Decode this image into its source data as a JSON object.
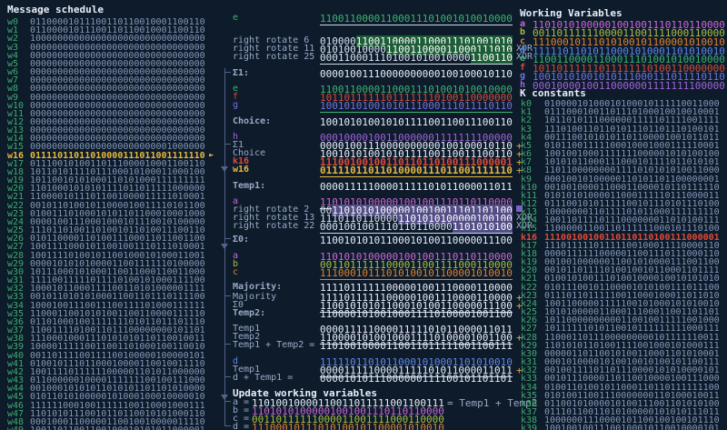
{
  "palette": {
    "background": "#0d1b2b",
    "binary_default": "#8598b8",
    "label_green": "#3eac6c",
    "var_a": "#cf66d4",
    "var_b": "#a9bf3e",
    "var_c": "#e0812f",
    "var_d": "#5f87e8",
    "var_e": "#3cb371",
    "var_f": "#d54c38",
    "var_g": "#7472dc",
    "var_h": "#a163d8",
    "k_highlight": "#e04a3a",
    "w_highlight": "#e9b83d",
    "plus": "#e8a23c",
    "rotate_highlight_green": "#1c5c36",
    "rotate_highlight_violet": "#534e86"
  },
  "icons": {
    "current_row_arrow": "►"
  },
  "message_schedule": {
    "title": "Message schedule",
    "rows": [
      {
        "label": "w0",
        "value": "01100001011100110110010001100110"
      },
      {
        "label": "w1",
        "value": "01100001011100110110010001100110"
      },
      {
        "label": "w2",
        "value": "10000000000000000000000000000000"
      },
      {
        "label": "w3",
        "value": "00000000000000000000000000000000"
      },
      {
        "label": "w4",
        "value": "00000000000000000000000000000000"
      },
      {
        "label": "w5",
        "value": "00000000000000000000000000000000"
      },
      {
        "label": "w6",
        "value": "00000000000000000000000000000000"
      },
      {
        "label": "w7",
        "value": "00000000000000000000000000000000"
      },
      {
        "label": "w8",
        "value": "00000000000000000000000000000000"
      },
      {
        "label": "w9",
        "value": "00000000000000000000000000000000"
      },
      {
        "label": "w10",
        "value": "00000000000000000000000000000000"
      },
      {
        "label": "w11",
        "value": "00000000000000000000000000000000"
      },
      {
        "label": "w12",
        "value": "00000000000000000000000000000000"
      },
      {
        "label": "w13",
        "value": "00000000000000000000000000000000"
      },
      {
        "label": "w14",
        "value": "00000000000000000000000000000000"
      },
      {
        "label": "w15",
        "value": "00000000000000000000000001000000"
      },
      {
        "label": "w16",
        "value": "01111011011010000111011001111110",
        "current": true
      },
      {
        "label": "w17",
        "value": "01110010100110111000010001100110"
      },
      {
        "label": "w18",
        "value": "10110101111011100010100011000100"
      },
      {
        "label": "w19",
        "value": "10110010101000110101000111111111"
      },
      {
        "label": "w20",
        "value": "11010001010101111011011111000000"
      },
      {
        "label": "w21",
        "value": "11000010111011001000011111010001"
      },
      {
        "label": "w22",
        "value": "00101101001011000010011110101100"
      },
      {
        "label": "w23",
        "value": "01001110100010101101100010001000"
      },
      {
        "label": "w24",
        "value": "00001001110001000101110010100000"
      },
      {
        "label": "w25",
        "value": "11101101001101001011010011100110"
      },
      {
        "label": "w26",
        "value": "01011000011010011100011011001100"
      },
      {
        "label": "w27",
        "value": "10011110001011001001110111010001"
      },
      {
        "label": "w28",
        "value": "10011110100101100100010100011001"
      },
      {
        "label": "w29",
        "value": "00001010101000011001111110100000"
      },
      {
        "label": "w30",
        "value": "10111000101000110011000110011000"
      },
      {
        "label": "w31",
        "value": "11110011111011110100101000111100"
      },
      {
        "label": "w32",
        "value": "10001011000111100110101000001111"
      },
      {
        "label": "w33",
        "value": "00101101010100011001101110111100"
      },
      {
        "label": "w34",
        "value": "10001001110011100111101000111111"
      },
      {
        "label": "w35",
        "value": "11000110010101001100110000111110"
      },
      {
        "label": "w36",
        "value": "01101000100111111101011011101110"
      },
      {
        "label": "w37",
        "value": "11001111010011011100000000101101"
      },
      {
        "label": "w38",
        "value": "11100010001110101010110110010011"
      },
      {
        "label": "w39",
        "value": "10000111110011001101000100110010"
      },
      {
        "label": "w40",
        "value": "00110111100111100100000100000101"
      },
      {
        "label": "w41",
        "value": "01001011101100010000110010011110"
      },
      {
        "label": "w42",
        "value": "10011110111111000001101011000000"
      },
      {
        "label": "w43",
        "value": "01100000010000111111100100111000"
      },
      {
        "label": "w44",
        "value": "00100010101011010101101101010000"
      },
      {
        "label": "w45",
        "value": "01011010100000101000100010000010"
      },
      {
        "label": "w46",
        "value": "11111100010011111100110001000111"
      },
      {
        "label": "w47",
        "value": "11010101110010110110010101000110"
      },
      {
        "label": "w48",
        "value": "00010001100000110010010000011110"
      },
      {
        "label": "w49",
        "value": "10011011001100100010101011000001"
      }
    ]
  },
  "mid": {
    "e_top": {
      "label": "e",
      "value": "11001100001100011101001010010000"
    },
    "rotations_e": [
      {
        "label": "right rotate 6",
        "value": "01000011001100001100011101001010",
        "xor": ""
      },
      {
        "label": "right rotate 11",
        "value": "01010010000110011000011000111010",
        "xor": "XOR"
      },
      {
        "label": "right rotate 25",
        "value": "00011000111010010100100001100110",
        "xor": "XOR"
      }
    ],
    "sigma1": {
      "label": "Σ1:",
      "value": "00001001110000000000100100010110"
    },
    "choice_inputs": [
      {
        "label": "e",
        "value": "11001100001100011101001010010000"
      },
      {
        "label": "f",
        "value": "10110111111011111110100110000000"
      },
      {
        "label": "g",
        "value": "10010101001010111000111011110110"
      }
    ],
    "choice": {
      "label": "Choice:",
      "value": "10010101001010111100110011100110"
    },
    "temp1_stack": [
      {
        "label": "h",
        "value": "00010000100110000001111111100000"
      },
      {
        "label": "Σ1",
        "value": "00001001110000000000100100010110",
        "plus": "+"
      },
      {
        "label": "Choice",
        "value": "10010101001010111100110011100110",
        "plus": "+"
      },
      {
        "label": "k16",
        "value": "11100100100110110110100111000001",
        "plus": "+"
      },
      {
        "label": "w16",
        "value": "01111011011010000111011001111110",
        "plus": "+"
      }
    ],
    "temp1": {
      "label": "Temp1:",
      "value": "00001111100001111101011000011011"
    },
    "a_top": {
      "label": "a",
      "value": "11010101000001001001110110110000"
    },
    "rotations_a": [
      {
        "label": "right rotate 2",
        "value": "00110101010000010010011101101100",
        "xor": ""
      },
      {
        "label": "right rotate 13",
        "value": "11101101100001101010100000100100",
        "xor": "XOR"
      },
      {
        "label": "right rotate 22",
        "value": "00010010011101101100001101010100",
        "xor": "XOR"
      }
    ],
    "sigma0": {
      "label": "Σ0:",
      "value": "11001010101100010100110000011100"
    },
    "majority_inputs": [
      {
        "label": "a",
        "value": "11010101000001001001110110110000"
      },
      {
        "label": "b",
        "value": "00110111111000011001111000110000"
      },
      {
        "label": "c",
        "value": "11100010111010100101100001010010"
      }
    ],
    "majority": {
      "label": "Majority:",
      "value": "11110111111000001001110000110000"
    },
    "temp2_stack": [
      {
        "label": "Majority",
        "value": "11110111111000001001110000110000",
        "plus": "+"
      },
      {
        "label": "Σ0",
        "value": "11001010101100010100110000011100",
        "plus": "+"
      }
    ],
    "temp2": {
      "label": "Temp2:",
      "value": "11000010100100011110100001001100"
    },
    "sum_a_stack": [
      {
        "label": "Temp1",
        "value": "00001111100001111101011000011011"
      },
      {
        "label": "Temp2",
        "value": "11000010100100011110100001001100",
        "plus": "+"
      }
    ],
    "sum_a": {
      "label": "Temp1 + Temp2 =",
      "value": "11010010000110011011111001100111"
    },
    "sum_e_stack": [
      {
        "label": "d",
        "value": "11111011010110001010001101010010"
      },
      {
        "label": "Temp1",
        "value": "00001111100001111101011000011011",
        "plus": "+"
      }
    ],
    "sum_e": {
      "label": "d + Temp1 =",
      "value": "00001010111000000111100101101101"
    },
    "update": {
      "title": "Update working variables",
      "rows": [
        {
          "label": "a =",
          "value": "11010010000110011011111001100111",
          "suffix": "= Temp1 + Temp2"
        },
        {
          "label": "b =",
          "value": "11010101000001001001110110110000"
        },
        {
          "label": "c =",
          "value": "00110111111000011001111000110000"
        },
        {
          "label": "d =",
          "value": "11100010111010100101100001010010"
        }
      ]
    }
  },
  "working_variables": {
    "title": "Working Variables",
    "rows": [
      {
        "label": "a",
        "value": "11010101000001001001110110110000"
      },
      {
        "label": "b",
        "value": "00110111111000011001111000110000"
      },
      {
        "label": "c",
        "value": "11100010111010100101100001010010"
      },
      {
        "label": "d",
        "value": "11111011010110001010001101010010"
      },
      {
        "label": "e",
        "value": "11001100001100011101001010010000"
      },
      {
        "label": "f",
        "value": "10110111111011111110100110000000"
      },
      {
        "label": "g",
        "value": "10010101001010111000111011110110"
      },
      {
        "label": "h",
        "value": "00010000100110000001111111100000"
      }
    ]
  },
  "k_constants": {
    "title": "K constants",
    "rows": [
      {
        "label": "k0",
        "value": "01000010100010100010111110011000"
      },
      {
        "label": "k1",
        "value": "01110001001101110100010010010001"
      },
      {
        "label": "k2",
        "value": "10110101110000001111101111001111"
      },
      {
        "label": "k3",
        "value": "11101001101101011101101110100101"
      },
      {
        "label": "k4",
        "value": "00111001010101101100001001011011"
      },
      {
        "label": "k5",
        "value": "01011001111100010001000111110001"
      },
      {
        "label": "k6",
        "value": "10010010001111111000001010100100"
      },
      {
        "label": "k7",
        "value": "10101011000111000101111011010101"
      },
      {
        "label": "k8",
        "value": "11011000000001111010101010011000"
      },
      {
        "label": "k9",
        "value": "00010010100000110101101100000001"
      },
      {
        "label": "k10",
        "value": "00100100001100011000010110111110"
      },
      {
        "label": "k11",
        "value": "01010101000011000111110111000011"
      },
      {
        "label": "k12",
        "value": "01110010101111100101110101110100"
      },
      {
        "label": "k13",
        "value": "10000000110111101011000111111110"
      },
      {
        "label": "k14",
        "value": "10011011110111000000011010100111"
      },
      {
        "label": "k15",
        "value": "11000001100110111111000101110100"
      },
      {
        "label": "k16",
        "value": "11100100100110110110100111000001",
        "current": true
      },
      {
        "label": "k17",
        "value": "11101111101111100100011110000110"
      },
      {
        "label": "k18",
        "value": "00001111110000011001110111000110"
      },
      {
        "label": "k19",
        "value": "00100100000011001010000111001100"
      },
      {
        "label": "k20",
        "value": "00101101111010010010110001101111"
      },
      {
        "label": "k21",
        "value": "01001010011101001000010010101010"
      },
      {
        "label": "k22",
        "value": "01011100101100001010100111011100"
      },
      {
        "label": "k23",
        "value": "01110110111110011000100011011010"
      },
      {
        "label": "k24",
        "value": "10011000001111100101000101010010"
      },
      {
        "label": "k25",
        "value": "10101000001100011100011001101101"
      },
      {
        "label": "k26",
        "value": "10110000000000110010011111001000"
      },
      {
        "label": "k27",
        "value": "10111111010110010111111111000111"
      },
      {
        "label": "k28",
        "value": "11000110111000000000101111110011"
      },
      {
        "label": "k29",
        "value": "11010101101001111001000101000111"
      },
      {
        "label": "k30",
        "value": "00000110110010100110001101010001"
      },
      {
        "label": "k31",
        "value": "00010100001010010010100101100111"
      },
      {
        "label": "k32",
        "value": "00100111101101110000101010000101"
      },
      {
        "label": "k33",
        "value": "00101110000110110010000100111000"
      },
      {
        "label": "k34",
        "value": "01001101001011000110110111111100"
      },
      {
        "label": "k35",
        "value": "01010011001110000000110100010011"
      },
      {
        "label": "k36",
        "value": "01100101000010100111001101010100"
      },
      {
        "label": "k37",
        "value": "01110110011010100000101010111011"
      },
      {
        "label": "k38",
        "value": "10000001110000101100100100101110"
      },
      {
        "label": "k39",
        "value": "10010010011100100010110010000101"
      }
    ]
  }
}
